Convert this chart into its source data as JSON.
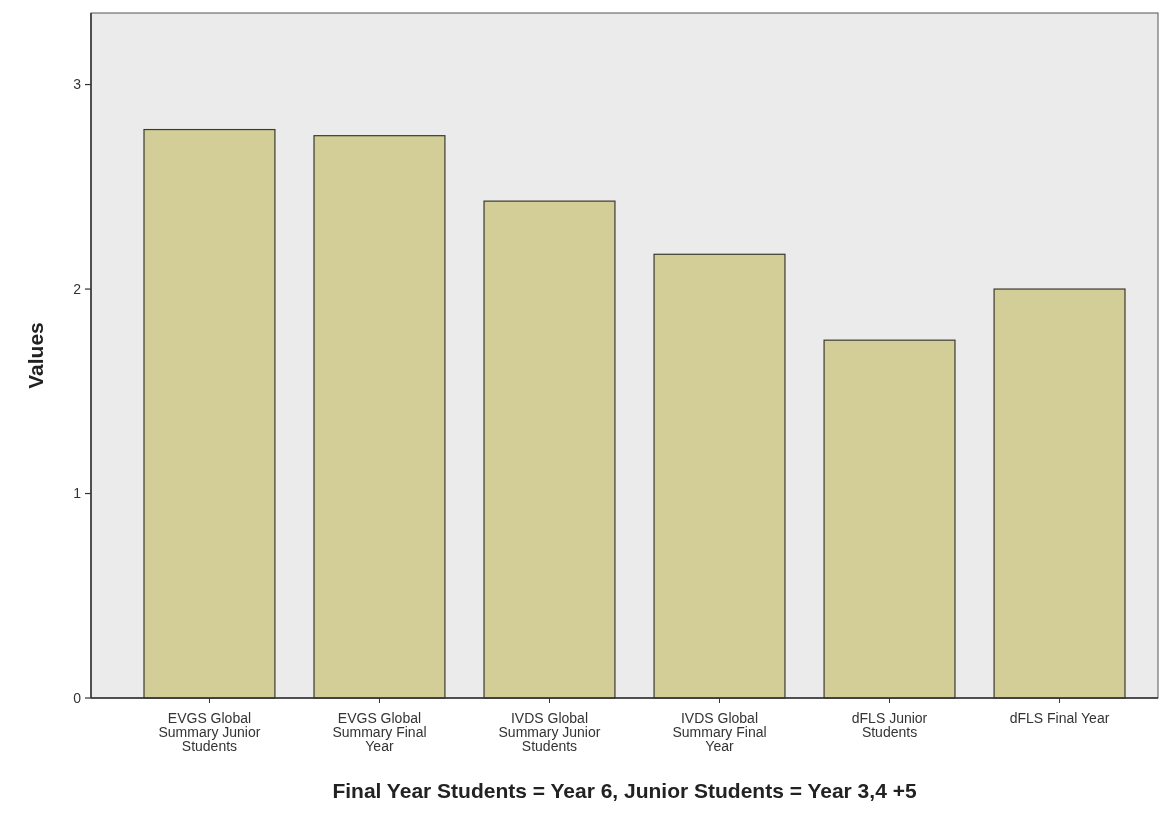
{
  "chart_data": {
    "type": "bar",
    "xlabel": "Final Year Students = Year 6, Junior Students = Year 3,4 +5",
    "ylabel": "Values",
    "categories": [
      "EVGS Global Summary Junior Students",
      "EVGS Global Summary Final Year",
      "IVDS Global Summary Junior Students",
      "IVDS Global Summary Final Year",
      "dFLS Junior Students",
      "dFLS Final Year"
    ],
    "values": [
      2.78,
      2.75,
      2.43,
      2.17,
      1.75,
      2.0
    ],
    "color": "#d3ce97",
    "ylim": [
      0,
      3.35
    ],
    "yticks": [
      0,
      1,
      2,
      3
    ],
    "grid": false
  }
}
